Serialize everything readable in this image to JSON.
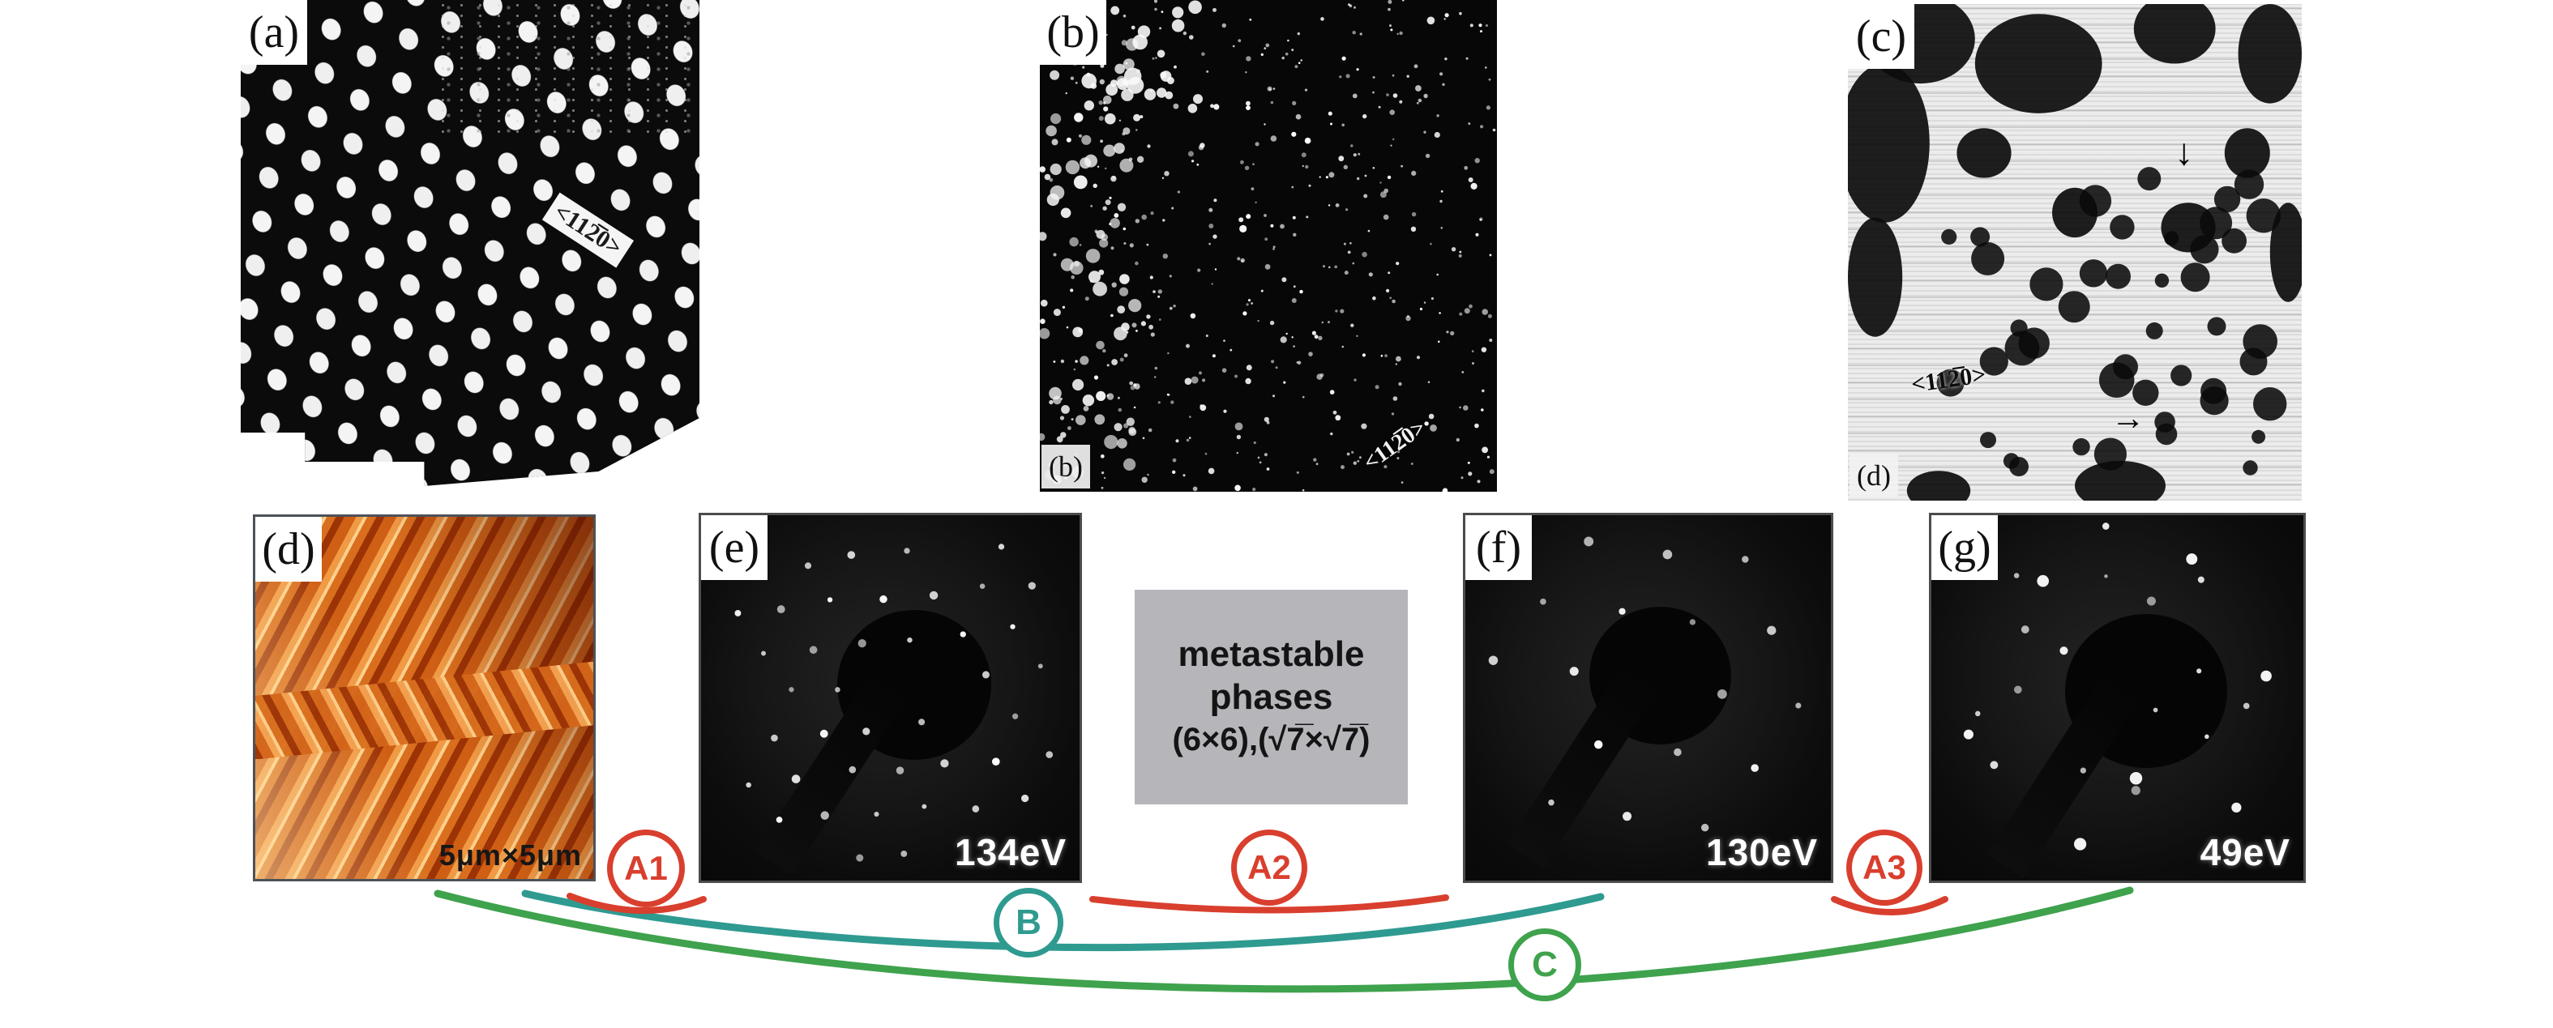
{
  "figure": {
    "description": "STM and LEED figure panels with phase-transition arrows",
    "background_color": "#ffffff"
  },
  "panels": {
    "a": {
      "label": "(a)",
      "annotation": "<112̅0>"
    },
    "b": {
      "label": "(b)",
      "inner_label": "(b)",
      "annotation": "<112̅0>"
    },
    "c": {
      "label": "(c)",
      "inner_label": "(d)",
      "annotation": "<112̅0>"
    },
    "d": {
      "label": "(d)",
      "scale_caption": "5μm×5μm"
    },
    "e": {
      "label": "(e)",
      "energy_caption": "134eV"
    },
    "f": {
      "label": "(f)",
      "energy_caption": "130eV"
    },
    "g": {
      "label": "(g)",
      "energy_caption": "49eV"
    }
  },
  "infobox": {
    "lines": [
      "metastable",
      "phases",
      "(6×6),(√7̅×√7̅)"
    ],
    "background_color": "#b5b5ba",
    "text_color": "#141414"
  },
  "transitions": {
    "A1": {
      "label": "A1",
      "color": "#d93f2e"
    },
    "A2": {
      "label": "A2",
      "color": "#d93f2e"
    },
    "A3": {
      "label": "A3",
      "color": "#d93f2e"
    },
    "B": {
      "label": "B",
      "color": "#2f9a90"
    },
    "C": {
      "label": "C",
      "color": "#3fa24d"
    }
  }
}
